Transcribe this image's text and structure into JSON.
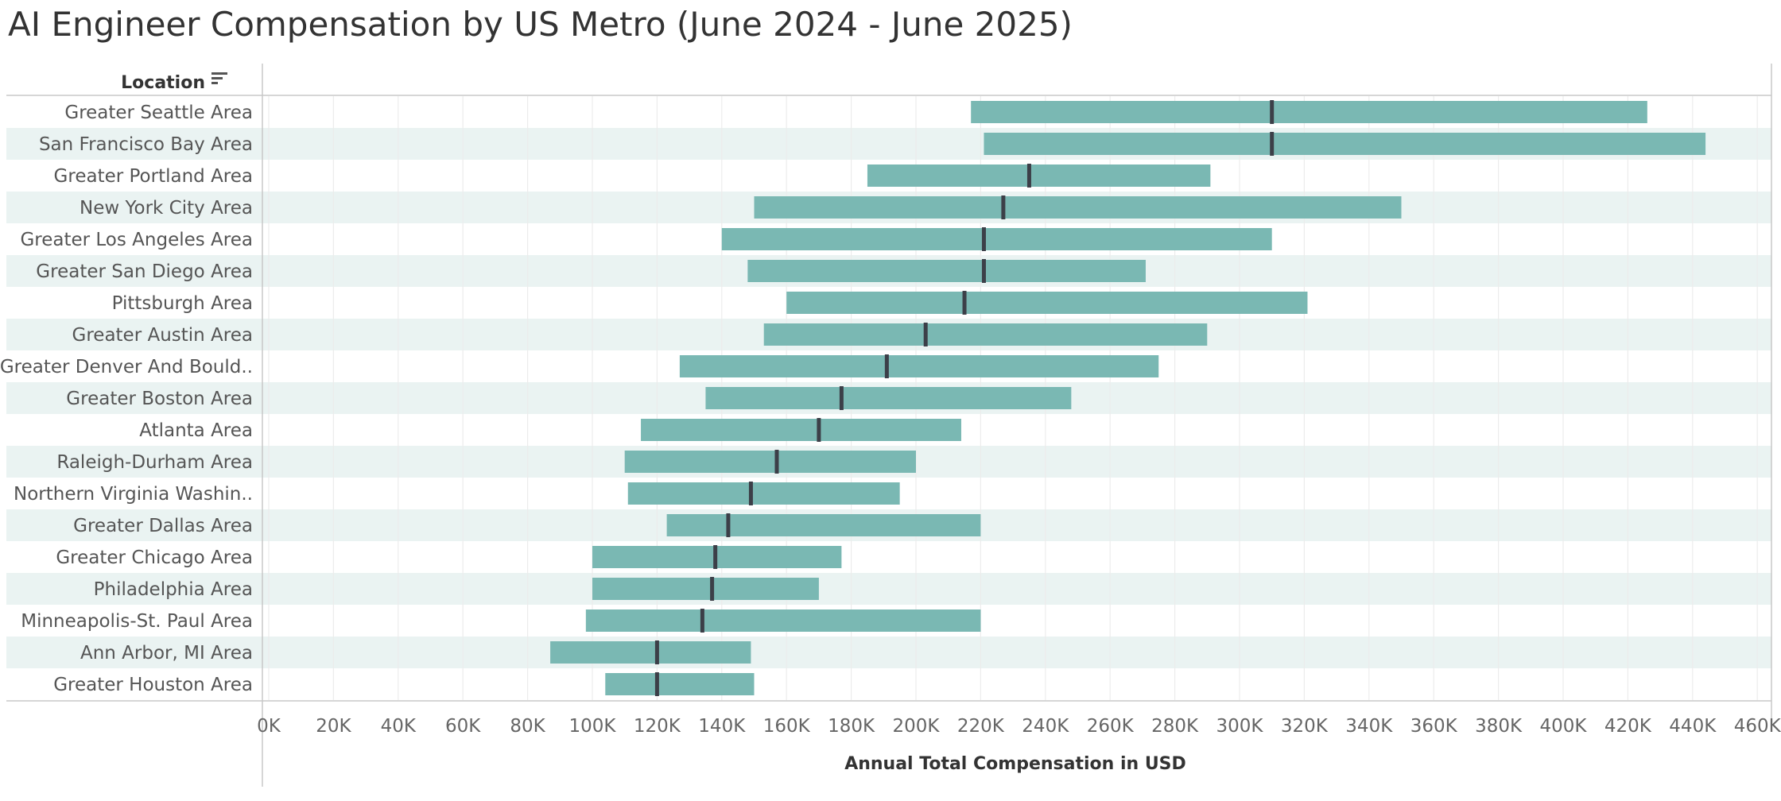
{
  "chart_data": {
    "type": "bar",
    "subtype": "range (min-max) bar with median marker",
    "title": "AI Engineer Compensation by US Metro (June 2024 - June 2025)",
    "row_header": "Location",
    "xlabel": "Annual Total Compensation in USD",
    "xlim": [
      0,
      470000
    ],
    "x_ticks": [
      0,
      20000,
      40000,
      60000,
      80000,
      100000,
      120000,
      140000,
      160000,
      180000,
      200000,
      220000,
      240000,
      260000,
      280000,
      300000,
      320000,
      340000,
      360000,
      380000,
      400000,
      420000,
      440000,
      460000
    ],
    "x_tick_labels": [
      "0K",
      "20K",
      "40K",
      "60K",
      "80K",
      "100K",
      "120K",
      "140K",
      "160K",
      "180K",
      "200K",
      "220K",
      "240K",
      "260K",
      "280K",
      "300K",
      "320K",
      "340K",
      "360K",
      "380K",
      "400K",
      "420K",
      "440K",
      "460K"
    ],
    "grid": "vertical",
    "categories": [
      "Greater Seattle Area",
      "San Francisco Bay Area",
      "Greater Portland Area",
      "New York City Area",
      "Greater Los Angeles Area",
      "Greater San Diego Area",
      "Pittsburgh Area",
      "Greater Austin Area",
      "Greater Denver And Bould..",
      "Greater Boston Area",
      "Atlanta Area",
      "Raleigh-Durham Area",
      "Northern Virginia Washin..",
      "Greater Dallas Area",
      "Greater Chicago Area",
      "Philadelphia Area",
      "Minneapolis-St. Paul Area",
      "Ann Arbor, MI Area",
      "Greater Houston Area"
    ],
    "series": [
      {
        "role": "range_min",
        "values": [
          217000,
          221000,
          185000,
          150000,
          140000,
          148000,
          160000,
          153000,
          127000,
          135000,
          115000,
          110000,
          111000,
          123000,
          100000,
          100000,
          98000,
          87000,
          104000
        ]
      },
      {
        "role": "range_max",
        "values": [
          426000,
          444000,
          291000,
          350000,
          310000,
          271000,
          321000,
          290000,
          275000,
          248000,
          214000,
          200000,
          195000,
          220000,
          177000,
          170000,
          220000,
          149000,
          150000
        ]
      },
      {
        "role": "median",
        "values": [
          310000,
          310000,
          235000,
          227000,
          221000,
          221000,
          215000,
          203000,
          191000,
          177000,
          170000,
          157000,
          149000,
          142000,
          138000,
          137000,
          134000,
          120000,
          120000
        ]
      }
    ],
    "colors": {
      "bar": "#7ab8b3",
      "median": "#3c3f48",
      "band": "#eaf3f2",
      "grid": "#ececec",
      "axis_line": "#c8c8c8"
    }
  }
}
